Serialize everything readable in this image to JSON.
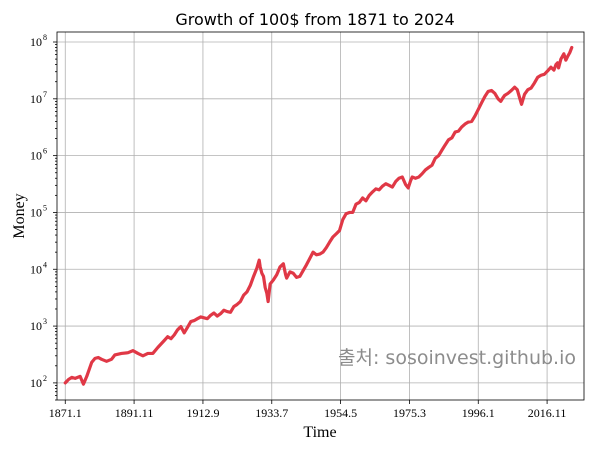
{
  "chart_data": {
    "type": "line",
    "title": "Growth of 100$ from 1871 to 2024",
    "xlabel": "Time",
    "ylabel": "Money",
    "yscale": "log",
    "ylim": [
      50,
      150000000
    ],
    "xlim": [
      1868.5,
      2028.0
    ],
    "xticks": [
      {
        "label": "1871.1",
        "x": 1871.0
      },
      {
        "label": "1891.11",
        "x": 1891.83
      },
      {
        "label": "1912.9",
        "x": 1912.67
      },
      {
        "label": "1933.7",
        "x": 1933.5
      },
      {
        "label": "1954.5",
        "x": 1954.33
      },
      {
        "label": "1975.3",
        "x": 1975.17
      },
      {
        "label": "1996.1",
        "x": 1996.0
      },
      {
        "label": "2016.11",
        "x": 2016.83
      }
    ],
    "yticks": [
      100,
      1000,
      10000,
      100000,
      1000000,
      10000000,
      100000000
    ],
    "grid": true,
    "annotation": "출처: sosoinvest.github.io",
    "series": [
      {
        "color": "#e03846",
        "points": [
          [
            1871.0,
            100
          ],
          [
            1872.0,
            115
          ],
          [
            1873.0,
            125
          ],
          [
            1874.0,
            120
          ],
          [
            1875.5,
            130
          ],
          [
            1876.5,
            95
          ],
          [
            1877.5,
            130
          ],
          [
            1879.0,
            230
          ],
          [
            1880.0,
            270
          ],
          [
            1881.0,
            280
          ],
          [
            1882.0,
            260
          ],
          [
            1883.5,
            240
          ],
          [
            1885.0,
            260
          ],
          [
            1886.0,
            310
          ],
          [
            1888.0,
            330
          ],
          [
            1890.0,
            340
          ],
          [
            1891.5,
            370
          ],
          [
            1893.0,
            330
          ],
          [
            1894.5,
            300
          ],
          [
            1896.0,
            330
          ],
          [
            1897.5,
            330
          ],
          [
            1899.0,
            420
          ],
          [
            1901.0,
            560
          ],
          [
            1902.0,
            650
          ],
          [
            1903.0,
            600
          ],
          [
            1904.0,
            700
          ],
          [
            1905.0,
            860
          ],
          [
            1906.0,
            980
          ],
          [
            1907.0,
            760
          ],
          [
            1908.0,
            950
          ],
          [
            1909.0,
            1200
          ],
          [
            1910.0,
            1250
          ],
          [
            1911.0,
            1350
          ],
          [
            1912.0,
            1450
          ],
          [
            1913.0,
            1400
          ],
          [
            1914.0,
            1350
          ],
          [
            1915.0,
            1550
          ],
          [
            1916.0,
            1700
          ],
          [
            1917.0,
            1500
          ],
          [
            1918.0,
            1650
          ],
          [
            1919.0,
            1900
          ],
          [
            1920.0,
            1800
          ],
          [
            1921.0,
            1750
          ],
          [
            1922.0,
            2200
          ],
          [
            1923.0,
            2400
          ],
          [
            1924.0,
            2700
          ],
          [
            1925.0,
            3500
          ],
          [
            1926.0,
            4000
          ],
          [
            1927.0,
            5200
          ],
          [
            1928.0,
            7500
          ],
          [
            1929.0,
            10500
          ],
          [
            1929.7,
            14500
          ],
          [
            1930.0,
            11000
          ],
          [
            1930.5,
            8500
          ],
          [
            1931.0,
            7500
          ],
          [
            1931.5,
            4800
          ],
          [
            1932.0,
            3800
          ],
          [
            1932.4,
            2700
          ],
          [
            1933.0,
            5500
          ],
          [
            1934.0,
            6500
          ],
          [
            1935.0,
            8000
          ],
          [
            1936.0,
            11000
          ],
          [
            1937.0,
            12500
          ],
          [
            1937.7,
            8000
          ],
          [
            1938.0,
            7000
          ],
          [
            1939.0,
            9000
          ],
          [
            1940.0,
            8500
          ],
          [
            1941.0,
            7200
          ],
          [
            1942.0,
            7500
          ],
          [
            1943.0,
            9500
          ],
          [
            1944.0,
            12000
          ],
          [
            1945.0,
            15500
          ],
          [
            1946.0,
            20000
          ],
          [
            1947.0,
            18000
          ],
          [
            1948.0,
            18500
          ],
          [
            1949.0,
            20000
          ],
          [
            1950.0,
            24000
          ],
          [
            1951.0,
            30000
          ],
          [
            1952.0,
            37000
          ],
          [
            1953.0,
            42000
          ],
          [
            1954.0,
            48000
          ],
          [
            1955.0,
            75000
          ],
          [
            1956.0,
            95000
          ],
          [
            1957.0,
            100000
          ],
          [
            1958.0,
            100000
          ],
          [
            1959.0,
            140000
          ],
          [
            1960.0,
            150000
          ],
          [
            1961.0,
            180000
          ],
          [
            1962.0,
            160000
          ],
          [
            1963.0,
            200000
          ],
          [
            1964.0,
            230000
          ],
          [
            1965.0,
            260000
          ],
          [
            1966.0,
            250000
          ],
          [
            1967.0,
            290000
          ],
          [
            1968.0,
            320000
          ],
          [
            1969.0,
            300000
          ],
          [
            1970.0,
            280000
          ],
          [
            1971.0,
            350000
          ],
          [
            1972.0,
            400000
          ],
          [
            1973.0,
            420000
          ],
          [
            1974.0,
            310000
          ],
          [
            1974.8,
            270000
          ],
          [
            1975.5,
            360000
          ],
          [
            1976.0,
            420000
          ],
          [
            1977.0,
            400000
          ],
          [
            1978.0,
            420000
          ],
          [
            1979.0,
            480000
          ],
          [
            1980.0,
            560000
          ],
          [
            1981.0,
            620000
          ],
          [
            1982.0,
            680000
          ],
          [
            1983.0,
            900000
          ],
          [
            1984.0,
            1000000
          ],
          [
            1985.0,
            1250000
          ],
          [
            1986.0,
            1550000
          ],
          [
            1987.0,
            1900000
          ],
          [
            1988.0,
            2050000
          ],
          [
            1989.0,
            2600000
          ],
          [
            1990.0,
            2700000
          ],
          [
            1991.0,
            3200000
          ],
          [
            1992.0,
            3600000
          ],
          [
            1993.0,
            3900000
          ],
          [
            1994.0,
            4000000
          ],
          [
            1995.0,
            5000000
          ],
          [
            1996.0,
            6500000
          ],
          [
            1997.0,
            8500000
          ],
          [
            1998.0,
            11000000
          ],
          [
            1999.0,
            13500000
          ],
          [
            2000.0,
            14000000
          ],
          [
            2001.0,
            12500000
          ],
          [
            2002.0,
            10000000
          ],
          [
            2002.8,
            9000000
          ],
          [
            2003.5,
            10500000
          ],
          [
            2004.0,
            11500000
          ],
          [
            2005.0,
            12500000
          ],
          [
            2006.0,
            14000000
          ],
          [
            2007.0,
            16000000
          ],
          [
            2007.8,
            14500000
          ],
          [
            2008.5,
            10500000
          ],
          [
            2009.1,
            8000000
          ],
          [
            2010.0,
            12000000
          ],
          [
            2011.0,
            14500000
          ],
          [
            2012.0,
            15500000
          ],
          [
            2013.0,
            19000000
          ],
          [
            2014.0,
            24000000
          ],
          [
            2015.0,
            26000000
          ],
          [
            2016.0,
            27000000
          ],
          [
            2017.0,
            31000000
          ],
          [
            2018.0,
            36000000
          ],
          [
            2018.9,
            32000000
          ],
          [
            2019.5,
            40000000
          ],
          [
            2020.0,
            43000000
          ],
          [
            2020.3,
            35000000
          ],
          [
            2021.0,
            50000000
          ],
          [
            2021.9,
            62000000
          ],
          [
            2022.5,
            48000000
          ],
          [
            2023.0,
            55000000
          ],
          [
            2023.7,
            65000000
          ],
          [
            2024.3,
            80000000
          ]
        ]
      }
    ]
  }
}
